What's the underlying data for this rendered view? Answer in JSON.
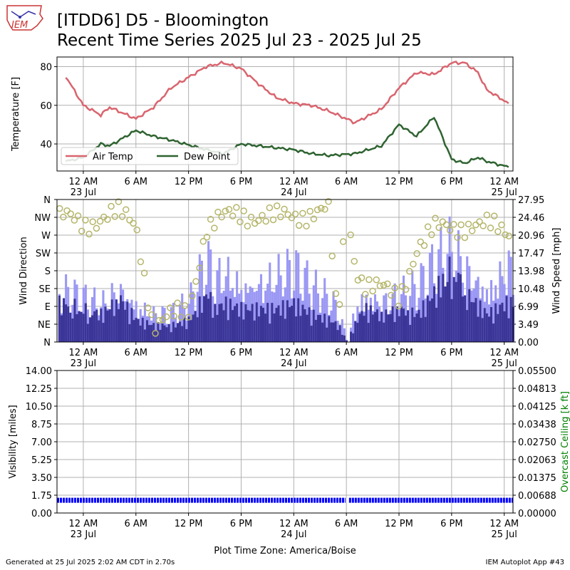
{
  "header": {
    "logo_text": "IEM",
    "title_line1": "[ITDD6] D5 - Bloomington",
    "title_line2": "Recent Time Series 2025 Jul 23 - 2025 Jul 25"
  },
  "footer": {
    "generated": "Generated at 25 Jul 2025 2:02 AM CDT in 2.70s",
    "app": "IEM Autoplot App #43"
  },
  "colors": {
    "air_temp": "#d9646e",
    "dew_point": "#2e6330",
    "wind_speed": "#3a3597",
    "wind_gust": "#9b98f4",
    "wind_direction": "#b5b56a",
    "visibility": "#0000ff",
    "ceiling_axis": "#008000"
  },
  "x_ticks": [
    {
      "main": "12 AM",
      "sub": "23 Jul"
    },
    {
      "main": "6 AM",
      "sub": ""
    },
    {
      "main": "12 PM",
      "sub": ""
    },
    {
      "main": "6 PM",
      "sub": ""
    },
    {
      "main": "12 AM",
      "sub": "24 Jul"
    },
    {
      "main": "6 AM",
      "sub": ""
    },
    {
      "main": "12 PM",
      "sub": ""
    },
    {
      "main": "6 PM",
      "sub": ""
    },
    {
      "main": "12 AM",
      "sub": "25 Jul"
    }
  ],
  "x_axis_label": "Plot Time Zone: America/Boise",
  "chart_data": [
    {
      "type": "line",
      "ylabel": "Temperature [F]",
      "ylim": [
        26,
        85
      ],
      "yticks": [
        "40",
        "60",
        "80"
      ],
      "x_hours": [
        -2,
        0,
        2,
        3,
        6,
        8,
        10,
        14,
        16,
        18,
        20,
        22,
        24,
        26,
        28,
        31,
        34,
        36,
        38,
        40,
        42,
        43.5,
        45,
        46,
        48.5
      ],
      "series": [
        {
          "name": "Air Temp",
          "values": [
            75,
            60,
            55,
            59,
            53,
            59,
            69,
            80,
            82,
            79,
            71,
            64,
            61,
            60,
            57,
            51,
            58,
            69,
            77,
            76,
            82,
            82,
            77,
            68,
            61
          ]
        },
        {
          "name": "Dew Point",
          "values": [
            31,
            33,
            40,
            39,
            47,
            44,
            42,
            37,
            35,
            40,
            39,
            38,
            37,
            35,
            34,
            35,
            39,
            50,
            44,
            54,
            32,
            30,
            33,
            31,
            28
          ]
        }
      ],
      "legend": {
        "placement": "lower-left",
        "entries": [
          "Air Temp",
          "Dew Point"
        ]
      },
      "grid": true
    },
    {
      "type": "bar",
      "ylabel_left": "Wind Direction",
      "ylabel_right": "Wind Speed [mph]",
      "left_ticks": [
        "N",
        "NE",
        "E",
        "SE",
        "S",
        "SW",
        "W",
        "NW",
        "N"
      ],
      "right_ticks": [
        "0.00",
        "3.49",
        "6.99",
        "10.48",
        "13.98",
        "17.47",
        "20.96",
        "24.46",
        "27.95"
      ],
      "speed_ylim": [
        0,
        27.95
      ],
      "x_hours": [
        -2,
        0,
        2,
        4,
        6,
        8,
        10,
        12,
        14,
        15,
        16,
        18,
        20,
        22,
        24,
        26,
        28,
        29,
        30,
        31,
        32,
        34,
        36,
        38,
        40,
        42,
        44,
        46,
        48
      ],
      "series": [
        {
          "name": "Wind Speed",
          "values": [
            7,
            6,
            5,
            8,
            4,
            3,
            3,
            4,
            9,
            6,
            7,
            6,
            6,
            6,
            7,
            5,
            4,
            3,
            0,
            4,
            6,
            5,
            6,
            5,
            9,
            14,
            8,
            5,
            7
          ]
        },
        {
          "name": "Wind Gust",
          "values": [
            10,
            9,
            8,
            12,
            8,
            6,
            6,
            8,
            17,
            13,
            15,
            12,
            13,
            14,
            15,
            11,
            9,
            7,
            0,
            8,
            10,
            9,
            10,
            11,
            16,
            20,
            15,
            11,
            16
          ]
        },
        {
          "name": "Wind Direction",
          "values": [
            310,
            300,
            315,
            320,
            300,
            40,
            60,
            80,
            290,
            300,
            310,
            325,
            320,
            310,
            320,
            330,
            330,
            30,
            355,
            200,
            150,
            130,
            110,
            240,
            280,
            290,
            300,
            290,
            280
          ]
        }
      ],
      "grid": true
    },
    {
      "type": "scatter",
      "ylabel_left": "Visibility [miles]",
      "ylabel_right": "Overcast Ceiling [k ft]",
      "left_ticks": [
        "0.00",
        "1.75",
        "3.50",
        "5.25",
        "7.00",
        "8.75",
        "10.50",
        "12.25",
        "14.00"
      ],
      "right_ticks": [
        "0.00000",
        "0.00688",
        "0.01375",
        "0.02063",
        "0.02750",
        "0.03438",
        "0.04125",
        "0.04813",
        "0.05500"
      ],
      "ylim": [
        0,
        14
      ],
      "series": [
        {
          "name": "Visibility",
          "x_range": [
            -3,
            49
          ],
          "value": 1.25
        }
      ],
      "grid": true
    }
  ]
}
